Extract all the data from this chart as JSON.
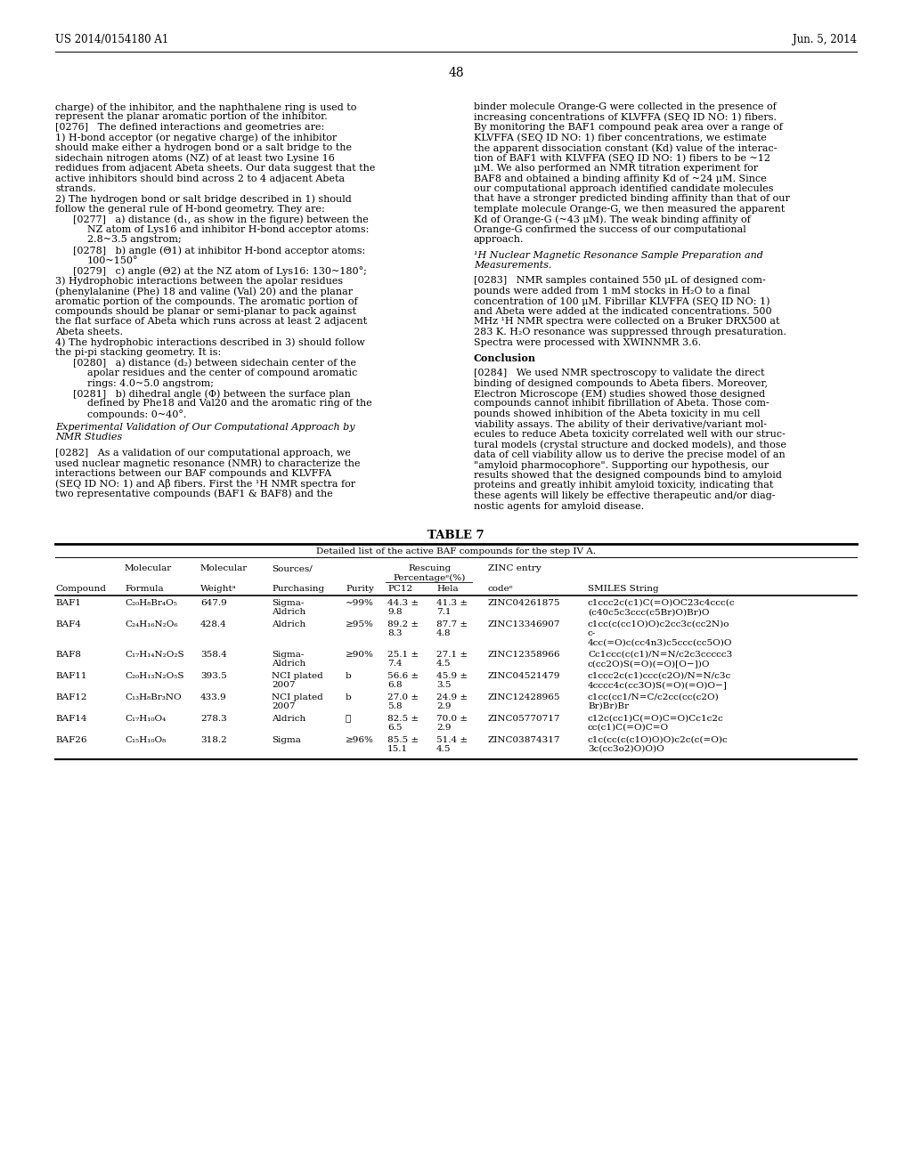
{
  "header_left": "US 2014/0154180 A1",
  "header_right": "Jun. 5, 2014",
  "page_number": "48",
  "bg_color": "#ffffff",
  "left_col_lines": [
    {
      "text": "charge) of the inhibitor, and the naphthalene ring is used to",
      "indent": 0
    },
    {
      "text": "represent the planar aromatic portion of the inhibitor.",
      "indent": 0
    },
    {
      "text": "[0276]   The defined interactions and geometries are:",
      "indent": 0
    },
    {
      "text": "1) H-bond acceptor (or negative charge) of the inhibitor",
      "indent": 0
    },
    {
      "text": "should make either a hydrogen bond or a salt bridge to the",
      "indent": 0
    },
    {
      "text": "sidechain nitrogen atoms (NZ) of at least two Lysine 16",
      "indent": 0
    },
    {
      "text": "redidues from adjacent Abeta sheets. Our data suggest that the",
      "indent": 0
    },
    {
      "text": "active inhibitors should bind across 2 to 4 adjacent Abeta",
      "indent": 0
    },
    {
      "text": "strands.",
      "indent": 0
    },
    {
      "text": "2) The hydrogen bond or salt bridge described in 1) should",
      "indent": 0
    },
    {
      "text": "follow the general rule of H-bond geometry. They are:",
      "indent": 0
    },
    {
      "text": "[0277]   a) distance (d₁, as show in the figure) between the",
      "indent": 1
    },
    {
      "text": "NZ atom of Lys16 and inhibitor H-bond acceptor atoms:",
      "indent": 2
    },
    {
      "text": "2.8~3.5 angstrom;",
      "indent": 2
    },
    {
      "text": "[0278]   b) angle (Θ1) at inhibitor H-bond acceptor atoms:",
      "indent": 1
    },
    {
      "text": "100~150°",
      "indent": 2
    },
    {
      "text": "[0279]   c) angle (Θ2) at the NZ atom of Lys16: 130~180°;",
      "indent": 1
    },
    {
      "text": "3) Hydrophobic interactions between the apolar residues",
      "indent": 0
    },
    {
      "text": "(phenylalanine (Phe) 18 and valine (Val) 20) and the planar",
      "indent": 0
    },
    {
      "text": "aromatic portion of the compounds. The aromatic portion of",
      "indent": 0
    },
    {
      "text": "compounds should be planar or semi-planar to pack against",
      "indent": 0
    },
    {
      "text": "the flat surface of Abeta which runs across at least 2 adjacent",
      "indent": 0
    },
    {
      "text": "Abeta sheets.",
      "indent": 0
    },
    {
      "text": "4) The hydrophobic interactions described in 3) should follow",
      "indent": 0
    },
    {
      "text": "the pi-pi stacking geometry. It is:",
      "indent": 0
    },
    {
      "text": "[0280]   a) distance (d₂) between sidechain center of the",
      "indent": 1
    },
    {
      "text": "apolar residues and the center of compound aromatic",
      "indent": 2
    },
    {
      "text": "rings: 4.0~5.0 angstrom;",
      "indent": 2
    },
    {
      "text": "[0281]   b) dihedral angle (Φ) between the surface plan",
      "indent": 1
    },
    {
      "text": "defined by Phe18 and Val20 and the aromatic ring of the",
      "indent": 2
    },
    {
      "text": "compounds: 0~40°.",
      "indent": 2
    }
  ],
  "left_bottom_lines": [
    {
      "text": "Experimental Validation of Our Computational Approach by",
      "style": "italic"
    },
    {
      "text": "NMR Studies",
      "style": "italic"
    },
    {
      "text": "",
      "style": "normal"
    },
    {
      "text": "[0282]   As a validation of our computational approach, we",
      "style": "normal"
    },
    {
      "text": "used nuclear magnetic resonance (NMR) to characterize the",
      "style": "normal"
    },
    {
      "text": "interactions between our BAF compounds and KLVFFA",
      "style": "normal"
    },
    {
      "text": "(SEQ ID NO: 1) and Aβ fibers. First the ¹H NMR spectra for",
      "style": "normal"
    },
    {
      "text": "two representative compounds (BAF1 & BAF8) and the",
      "style": "normal"
    }
  ],
  "right_col_lines": [
    "binder molecule Orange-G were collected in the presence of",
    "increasing concentrations of KLVFFA (SEQ ID NO: 1) fibers.",
    "By monitoring the BAF1 compound peak area over a range of",
    "KLVFFA (SEQ ID NO: 1) fiber concentrations, we estimate",
    "the apparent dissociation constant (Kd) value of the interac-",
    "tion of BAF1 with KLVFFA (SEQ ID NO: 1) fibers to be ~12",
    "μM. We also performed an NMR titration experiment for",
    "BAF8 and obtained a binding affinity Kd of ~24 μM. Since",
    "our computational approach identified candidate molecules",
    "that have a stronger predicted binding affinity than that of our",
    "template molecule Orange-G, we then measured the apparent",
    "Kd of Orange-G (~43 μM). The weak binding affinity of",
    "Orange-G confirmed the success of our computational",
    "approach.",
    "",
    "¹H Nuclear Magnetic Resonance Sample Preparation and",
    "Measurements.",
    "",
    "[0283]   NMR samples contained 550 μL of designed com-",
    "pounds were added from 1 mM stocks in H₂O to a final",
    "concentration of 100 μM. Fibrillar KLVFFA (SEQ ID NO: 1)",
    "and Abeta were added at the indicated concentrations. 500",
    "MHz ¹H NMR spectra were collected on a Bruker DRX500 at",
    "283 K. H₂O resonance was suppressed through presaturation.",
    "Spectra were processed with XWINNMR 3.6.",
    "",
    "Conclusion",
    "",
    "[0284]   We used NMR spectroscopy to validate the direct",
    "binding of designed compounds to Abeta fibers. Moreover,",
    "Electron Microscope (EM) studies showed those designed",
    "compounds cannot inhibit fibrillation of Abeta. Those com-",
    "pounds showed inhibition of the Abeta toxicity in mu cell",
    "viability assays. The ability of their derivative/variant mol-",
    "ecules to reduce Abeta toxicity correlated well with our struc-",
    "tural models (crystal structure and docked models), and those",
    "data of cell viability allow us to derive the precise model of an",
    "\"amyloid pharmocophore\". Supporting our hypothesis, our",
    "results showed that the designed compounds bind to amyloid",
    "proteins and greatly inhibit amyloid toxicity, indicating that",
    "these agents will likely be effective therapeutic and/or diag-",
    "nostic agents for amyloid disease."
  ],
  "table_title": "TABLE 7",
  "table_subtitle": "Detailed list of the active BAF compounds for the step IV A.",
  "table_rows": [
    {
      "compound": "BAF1",
      "formula": "C₂₀H₈Br₄O₅",
      "weight": "647.9",
      "source": [
        "Sigma-",
        "Aldrich"
      ],
      "purity": "~99%",
      "pc12": [
        "44.3 ±",
        "9.8"
      ],
      "hela": [
        "41.3 ±",
        "7.1"
      ],
      "zinc": "ZINC04261875",
      "smiles": [
        "c1ccc2c(c1)C(=O)OC23c4ccc(c",
        "(c40c5c3ccc(c5Br)O)Br)O"
      ]
    },
    {
      "compound": "BAF4",
      "formula": "C₂₄H₁₆N₂O₆",
      "weight": "428.4",
      "source": [
        "Aldrich"
      ],
      "purity": "≥95%",
      "pc12": [
        "89.2 ±",
        "8.3"
      ],
      "hela": [
        "87.7 ±",
        "4.8"
      ],
      "zinc": "ZINC13346907",
      "smiles": [
        "c1cc(c(cc1O)O)c2cc3c(cc2N)o",
        "c-",
        "4cc(=O)c(cc4n3)c5ccc(cc5O)O"
      ]
    },
    {
      "compound": "BAF8",
      "formula": "C₁₇H₁₄N₂O₂S",
      "weight": "358.4",
      "source": [
        "Sigma-",
        "Aldrich"
      ],
      "purity": "≥90%",
      "pc12": [
        "25.1 ±",
        "7.4"
      ],
      "hela": [
        "27.1 ±",
        "4.5"
      ],
      "zinc": "ZINC12358966",
      "smiles": [
        "Cc1ccc(c(c1)/N=N/c2c3ccccc3",
        "c(cc2O)S(=O)(=O)[O−])O"
      ]
    },
    {
      "compound": "BAF11",
      "formula": "C₂₀H₁₃N₂O₅S",
      "weight": "393.5",
      "source": [
        "NCI plated",
        "2007"
      ],
      "purity": "b",
      "pc12": [
        "56.6 ±",
        "6.8"
      ],
      "hela": [
        "45.9 ±",
        "3.5"
      ],
      "zinc": "ZINC04521479",
      "smiles": [
        "c1ccc2c(c1)ccc(c2O)/N=N/c3c",
        "4cccc4c(cc3O)S(=O)(=O)O−]"
      ]
    },
    {
      "compound": "BAF12",
      "formula": "C₁₃H₈Br₃NO",
      "weight": "433.9",
      "source": [
        "NCI plated",
        "2007"
      ],
      "purity": "b",
      "pc12": [
        "27.0 ±",
        "5.8"
      ],
      "hela": [
        "24.9 ±",
        "2.9"
      ],
      "zinc": "ZINC12428965",
      "smiles": [
        "c1cc(cc1/N=C/c2cc(cc(c2O)",
        "Br)Br)Br"
      ]
    },
    {
      "compound": "BAF14",
      "formula": "C₁₇H₁₀O₄",
      "weight": "278.3",
      "source": [
        "Aldrich"
      ],
      "purity": "ⓞ",
      "pc12": [
        "82.5 ±",
        "6.5"
      ],
      "hela": [
        "70.0 ±",
        "2.9"
      ],
      "zinc": "ZINC05770717",
      "smiles": [
        "c12c(cc1)C(=O)C=O)Cc1c2c",
        "cc(c1)C(=O)C=O"
      ]
    },
    {
      "compound": "BAF26",
      "formula": "C₁₅H₁₀O₈",
      "weight": "318.2",
      "source": [
        "Sigma"
      ],
      "purity": "≥96%",
      "pc12": [
        "85.5 ±",
        "15.1"
      ],
      "hela": [
        "51.4 ±",
        "4.5"
      ],
      "zinc": "ZINC03874317",
      "smiles": [
        "c1c(cc(c(c1O)O)O)c2c(c(=O)c",
        "3c(cc3o2)O)O)O"
      ]
    }
  ]
}
